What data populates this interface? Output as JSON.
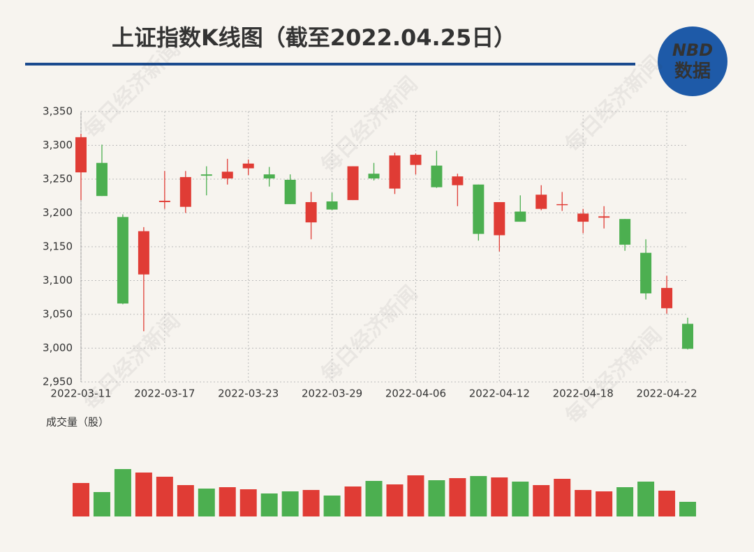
{
  "header": {
    "title": "上证指数K线图（截至2022.04.25日）",
    "logo_top": "NBD",
    "logo_bottom": "数据",
    "watermark": "每日经济新闻"
  },
  "chart_data": [
    {
      "type": "candlestick",
      "categories": [
        "2022-03-11",
        null,
        null,
        null,
        "2022-03-17",
        null,
        null,
        null,
        "2022-03-23",
        null,
        null,
        null,
        "2022-03-29",
        null,
        null,
        null,
        "2022-04-06",
        null,
        null,
        null,
        "2022-04-12",
        null,
        null,
        null,
        "2022-04-18",
        null,
        null,
        null,
        "2022-04-22",
        null
      ],
      "open": [
        3260,
        3274,
        3194,
        3109,
        3216,
        3209,
        3257,
        3251,
        3266,
        3257,
        3249,
        3186,
        3217,
        3219,
        3258,
        3236,
        3271,
        3270,
        3241,
        3242,
        3167,
        3202,
        3206,
        3212,
        3187,
        3193,
        3191,
        3141,
        3059,
        3036
      ],
      "close": [
        3312,
        3225,
        3066,
        3173,
        3218,
        3253,
        3255,
        3261,
        3273,
        3251,
        3213,
        3216,
        3205,
        3269,
        3251,
        3285,
        3286,
        3238,
        3254,
        3169,
        3216,
        3187,
        3227,
        3213,
        3199,
        3195,
        3153,
        3081,
        3089,
        2999
      ],
      "high": [
        3317,
        3301,
        3198,
        3179,
        3262,
        3262,
        3269,
        3280,
        3279,
        3268,
        3257,
        3231,
        3230,
        3269,
        3274,
        3289,
        3288,
        3292,
        3258,
        3242,
        3216,
        3226,
        3241,
        3231,
        3206,
        3210,
        3191,
        3161,
        3107,
        3045
      ],
      "low": [
        3219,
        3225,
        3065,
        3025,
        3206,
        3200,
        3226,
        3242,
        3256,
        3239,
        3213,
        3161,
        3204,
        3219,
        3248,
        3228,
        3257,
        3237,
        3210,
        3159,
        3143,
        3187,
        3204,
        3203,
        3170,
        3177,
        3144,
        3072,
        3051,
        2998
      ],
      "up_color": "#e03c35",
      "down_color": "#4caf50",
      "ylim": [
        2950,
        3350
      ],
      "yticks": [
        {
          "value": 2950,
          "label": "2,950"
        },
        {
          "value": 3000,
          "label": "3,000"
        },
        {
          "value": 3050,
          "label": "3,050"
        },
        {
          "value": 3100,
          "label": "3,100"
        },
        {
          "value": 3150,
          "label": "3,150"
        },
        {
          "value": 3200,
          "label": "3,200"
        },
        {
          "value": 3250,
          "label": "3,250"
        },
        {
          "value": 3300,
          "label": "3,300"
        },
        {
          "value": 3350,
          "label": "3,350"
        }
      ],
      "grid": true
    },
    {
      "type": "bar",
      "title": "成交量（股）",
      "values": [
        48,
        35,
        68,
        63,
        57,
        45,
        40,
        42,
        39,
        33,
        36,
        38,
        30,
        43,
        51,
        46,
        59,
        52,
        55,
        58,
        56,
        50,
        45,
        54,
        38,
        36,
        42,
        50,
        37,
        21
      ],
      "colors": [
        "#e03c35",
        "#4caf50",
        "#4caf50",
        "#e03c35",
        "#e03c35",
        "#e03c35",
        "#4caf50",
        "#e03c35",
        "#e03c35",
        "#4caf50",
        "#4caf50",
        "#e03c35",
        "#4caf50",
        "#e03c35",
        "#4caf50",
        "#e03c35",
        "#e03c35",
        "#4caf50",
        "#e03c35",
        "#4caf50",
        "#e03c35",
        "#4caf50",
        "#e03c35",
        "#e03c35",
        "#e03c35",
        "#e03c35",
        "#4caf50",
        "#4caf50",
        "#e03c35",
        "#4caf50"
      ],
      "ylim": [
        0,
        70
      ]
    }
  ]
}
